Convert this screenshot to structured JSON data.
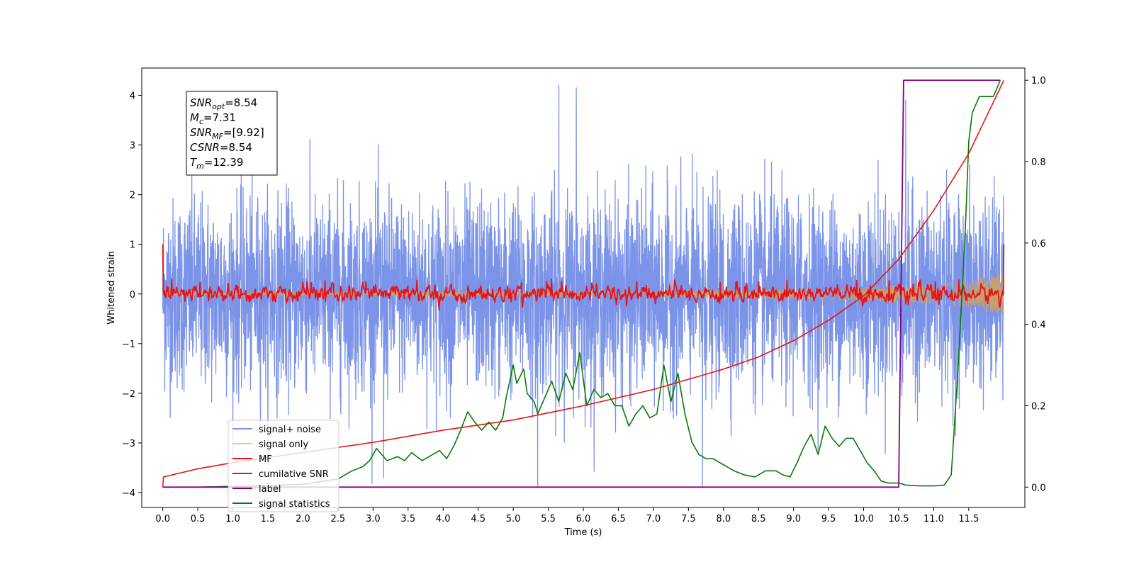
{
  "chart_data": {
    "type": "line",
    "xlabel": "Time (s)",
    "ylabel": "Whitened strain",
    "xlim": [
      -0.3,
      12.3
    ],
    "ylim_left": [
      -4.3,
      4.55
    ],
    "ylim_right": [
      -0.05,
      1.03
    ],
    "x_ticks": [
      "0.0",
      "0.5",
      "1.0",
      "1.5",
      "2.0",
      "2.5",
      "3.0",
      "3.5",
      "4.0",
      "4.5",
      "5.0",
      "5.5",
      "6.0",
      "6.5",
      "7.0",
      "7.5",
      "8.0",
      "8.5",
      "9.0",
      "9.5",
      "10.0",
      "10.5",
      "11.0",
      "11.5"
    ],
    "y_ticks_left": [
      "4",
      "3",
      "2",
      "1",
      "0",
      "−1",
      "−2",
      "−3",
      "−4"
    ],
    "y_ticks_right": [
      "1.0",
      "0.8",
      "0.6",
      "0.4",
      "0.2",
      "0.0"
    ],
    "annotation": {
      "lines": [
        {
          "base": "SNR",
          "sub": "opt",
          "value": "=8.54"
        },
        {
          "base": "M",
          "sub": "c",
          "value": "=7.31"
        },
        {
          "base": "SNR",
          "sub": "MF",
          "value": "=[9.92]"
        },
        {
          "base": "CSNR",
          "sub": "",
          "value": "=8.54"
        },
        {
          "base": "T",
          "sub": "m",
          "value": "=12.39"
        }
      ]
    },
    "legend": {
      "placement": "lower-left",
      "entries": [
        {
          "label": "signal+ noise",
          "color": "#7b93e8"
        },
        {
          "label": "signal only",
          "color": "#f5c77a"
        },
        {
          "label": "MF",
          "color": "#e81414"
        },
        {
          "label": "cumilative SNR",
          "color": "#e81414"
        },
        {
          "label": "label",
          "color": "#800080"
        },
        {
          "label": "signal statistics",
          "color": "#087a08"
        }
      ]
    },
    "series": [
      {
        "name": "signal+ noise",
        "axis": "left",
        "color": "#7b93e8",
        "kind": "noise",
        "x_range": [
          0.0,
          12.0
        ],
        "std": 1.0,
        "spikes": [
          [
            5.65,
            4.2
          ],
          [
            5.35,
            -3.9
          ],
          [
            7.7,
            -3.9
          ],
          [
            5.9,
            4.15
          ],
          [
            3.15,
            -3.7
          ],
          [
            10.6,
            3.9
          ]
        ]
      },
      {
        "name": "signal only",
        "axis": "left",
        "color": "#c8a070",
        "kind": "envelope",
        "x": [
          0,
          4,
          7,
          8,
          9,
          10,
          11,
          11.5,
          12.0
        ],
        "amplitude": [
          0.03,
          0.04,
          0.06,
          0.08,
          0.1,
          0.14,
          0.2,
          0.28,
          0.42
        ]
      },
      {
        "name": "MF",
        "axis": "left",
        "color": "#e81414",
        "kind": "noise",
        "x_range": [
          0.0,
          12.0
        ],
        "std": 0.08,
        "edges": [
          [
            0.0,
            1.0
          ],
          [
            12.0,
            1.0
          ]
        ]
      },
      {
        "name": "cumilative SNR",
        "axis": "right",
        "color": "#e81414",
        "x": [
          0.0,
          0.01,
          0.5,
          1,
          2,
          3,
          4,
          5,
          6,
          7,
          8,
          8.5,
          9,
          9.5,
          10,
          10.5,
          11,
          11.5,
          12.0
        ],
        "y": [
          0.0,
          0.025,
          0.045,
          0.06,
          0.085,
          0.11,
          0.14,
          0.165,
          0.2,
          0.24,
          0.29,
          0.32,
          0.36,
          0.41,
          0.47,
          0.56,
          0.68,
          0.82,
          1.0
        ]
      },
      {
        "name": "label",
        "axis": "right",
        "color": "#800080",
        "x": [
          0.0,
          10.5,
          10.57,
          11.95
        ],
        "y": [
          0.0,
          0.0,
          1.0,
          1.0
        ]
      },
      {
        "name": "signal statistics",
        "axis": "right",
        "color": "#087a08",
        "x": [
          0.0,
          0.5,
          1.0,
          1.5,
          2.0,
          2.3,
          2.5,
          2.7,
          2.85,
          2.95,
          3.05,
          3.2,
          3.35,
          3.45,
          3.55,
          3.7,
          3.85,
          3.95,
          4.05,
          4.15,
          4.25,
          4.35,
          4.45,
          4.55,
          4.65,
          4.75,
          4.85,
          4.9,
          5.0,
          5.05,
          5.15,
          5.2,
          5.3,
          5.35,
          5.45,
          5.55,
          5.65,
          5.75,
          5.85,
          5.95,
          6.05,
          6.15,
          6.25,
          6.35,
          6.45,
          6.55,
          6.65,
          6.75,
          6.85,
          6.95,
          7.05,
          7.15,
          7.25,
          7.35,
          7.45,
          7.55,
          7.65,
          7.75,
          7.85,
          7.95,
          8.05,
          8.15,
          8.3,
          8.45,
          8.6,
          8.75,
          8.85,
          8.95,
          9.05,
          9.15,
          9.25,
          9.35,
          9.45,
          9.55,
          9.65,
          9.75,
          9.85,
          9.95,
          10.05,
          10.15,
          10.25,
          10.35,
          10.5,
          10.6,
          10.8,
          11.0,
          11.15,
          11.25,
          11.35,
          11.45,
          11.5,
          11.55,
          11.65,
          11.75,
          11.85,
          11.95
        ],
        "y": [
          0.0,
          0.0,
          0.002,
          0.004,
          0.007,
          0.015,
          0.02,
          0.04,
          0.05,
          0.065,
          0.095,
          0.065,
          0.075,
          0.065,
          0.085,
          0.065,
          0.08,
          0.09,
          0.07,
          0.1,
          0.14,
          0.185,
          0.16,
          0.14,
          0.16,
          0.14,
          0.17,
          0.22,
          0.3,
          0.255,
          0.29,
          0.23,
          0.21,
          0.18,
          0.22,
          0.26,
          0.21,
          0.28,
          0.24,
          0.33,
          0.2,
          0.24,
          0.22,
          0.23,
          0.2,
          0.2,
          0.15,
          0.18,
          0.2,
          0.17,
          0.18,
          0.3,
          0.21,
          0.28,
          0.18,
          0.11,
          0.08,
          0.07,
          0.07,
          0.06,
          0.05,
          0.04,
          0.03,
          0.025,
          0.04,
          0.04,
          0.03,
          0.025,
          0.06,
          0.1,
          0.13,
          0.08,
          0.15,
          0.12,
          0.1,
          0.12,
          0.12,
          0.09,
          0.06,
          0.04,
          0.015,
          0.01,
          0.01,
          0.005,
          0.003,
          0.003,
          0.005,
          0.03,
          0.3,
          0.63,
          0.85,
          0.92,
          0.96,
          0.96,
          0.96,
          1.0
        ]
      }
    ]
  }
}
